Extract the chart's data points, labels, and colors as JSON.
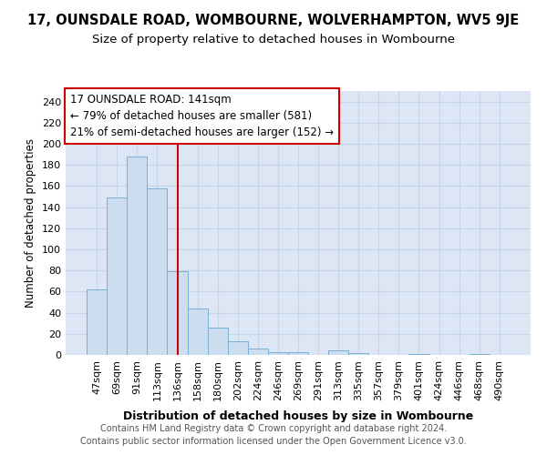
{
  "title_line1": "17, OUNSDALE ROAD, WOMBOURNE, WOLVERHAMPTON, WV5 9JE",
  "title_line2": "Size of property relative to detached houses in Wombourne",
  "xlabel": "Distribution of detached houses by size in Wombourne",
  "ylabel": "Number of detached properties",
  "categories": [
    "47sqm",
    "69sqm",
    "91sqm",
    "113sqm",
    "136sqm",
    "158sqm",
    "180sqm",
    "202sqm",
    "224sqm",
    "246sqm",
    "269sqm",
    "291sqm",
    "313sqm",
    "335sqm",
    "357sqm",
    "379sqm",
    "401sqm",
    "424sqm",
    "446sqm",
    "468sqm",
    "490sqm"
  ],
  "values": [
    62,
    149,
    188,
    158,
    79,
    44,
    26,
    13,
    6,
    3,
    3,
    0,
    4,
    2,
    0,
    0,
    1,
    0,
    0,
    1,
    0
  ],
  "bar_color": "#ccddf0",
  "bar_edge_color": "#7aafd4",
  "vline_x": 4.0,
  "vline_color": "#cc0000",
  "ylim": [
    0,
    250
  ],
  "yticks": [
    0,
    20,
    40,
    60,
    80,
    100,
    120,
    140,
    160,
    180,
    200,
    220,
    240
  ],
  "annotation_box_text_line1": "17 OUNSDALE ROAD: 141sqm",
  "annotation_box_text_line2": "← 79% of detached houses are smaller (581)",
  "annotation_box_text_line3": "21% of semi-detached houses are larger (152) →",
  "annotation_box_color": "#ffffff",
  "annotation_box_edge_color": "#cc0000",
  "grid_color": "#c8d4e8",
  "bg_color": "#dce6f5",
  "footer_line1": "Contains HM Land Registry data © Crown copyright and database right 2024.",
  "footer_line2": "Contains public sector information licensed under the Open Government Licence v3.0.",
  "title_fontsize": 10.5,
  "subtitle_fontsize": 9.5,
  "tick_fontsize": 8,
  "ylabel_fontsize": 8.5,
  "xlabel_fontsize": 9,
  "footer_fontsize": 7,
  "annotation_fontsize": 8.5
}
